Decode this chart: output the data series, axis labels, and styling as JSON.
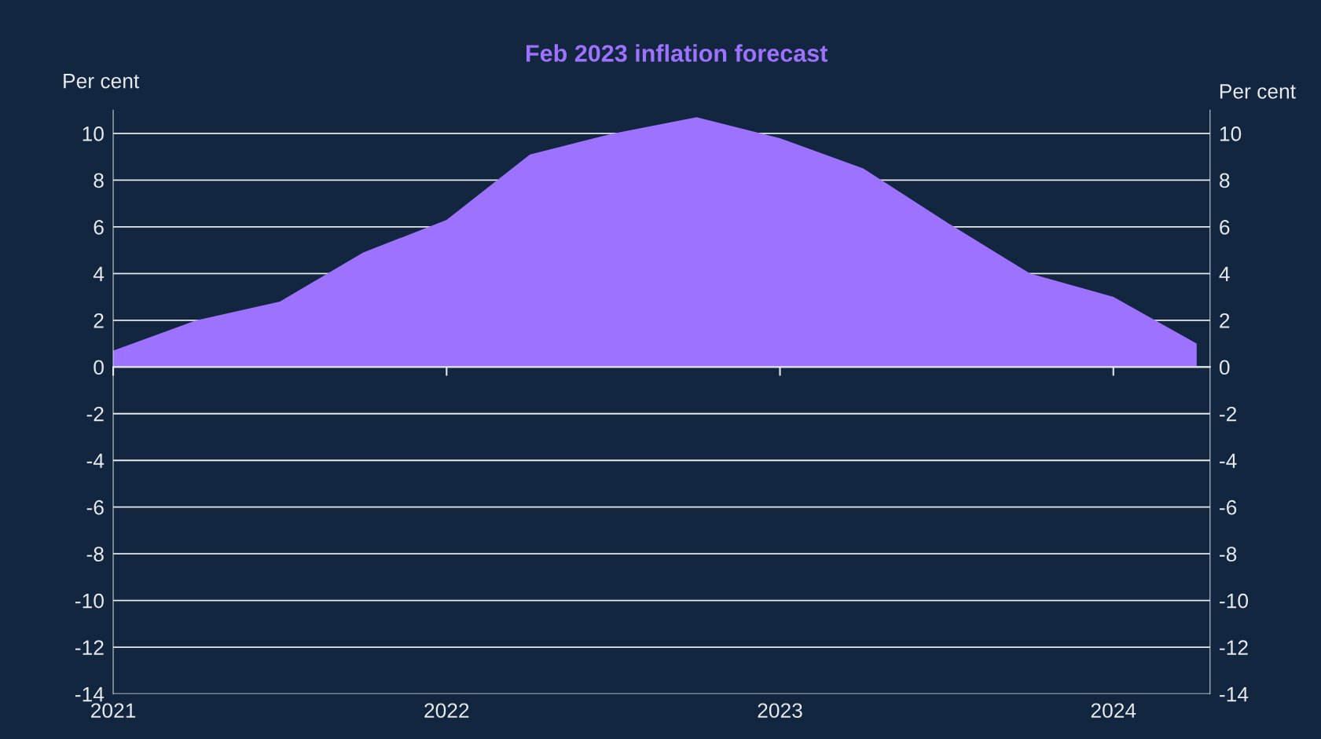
{
  "chart_data": {
    "type": "area",
    "title": "Feb 2023 inflation forecast",
    "ylabel": "Per cent",
    "y2label": "Per cent",
    "x": [
      2021,
      2021.25,
      2021.5,
      2021.75,
      2022,
      2022.25,
      2022.5,
      2022.75,
      2023,
      2023.25,
      2023.5,
      2023.75,
      2024,
      2024.25
    ],
    "series": [
      {
        "color": "#9d72fe",
        "values": [
          0.7,
          2.0,
          2.8,
          4.9,
          6.3,
          9.1,
          10.0,
          10.7,
          9.8,
          8.5,
          6.2,
          4.0,
          3.0,
          1.0
        ]
      }
    ],
    "xlim": [
      2021,
      2024.29
    ],
    "xticks": [
      2021,
      2022,
      2023,
      2024
    ],
    "ylim": [
      -14,
      11
    ],
    "yticks": [
      -14,
      -12,
      -10,
      -8,
      -6,
      -4,
      -2,
      0,
      2,
      4,
      6,
      8,
      10
    ],
    "y2lim": [
      -14,
      11
    ],
    "y2ticks": [
      -14,
      -12,
      -10,
      -8,
      -6,
      -4,
      -2,
      0,
      2,
      4,
      6,
      8,
      10
    ],
    "grid": "y",
    "legend": false
  }
}
